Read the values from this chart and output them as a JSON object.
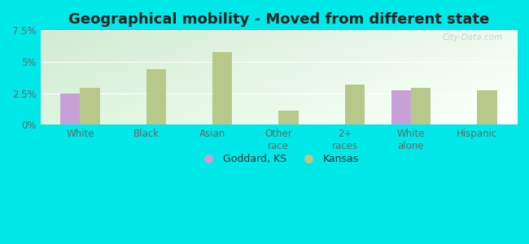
{
  "title": "Geographical mobility - Moved from different state",
  "categories": [
    "White",
    "Black",
    "Asian",
    "Other\nrace",
    "2+\nraces",
    "White\nalone",
    "Hispanic"
  ],
  "goddard_values": [
    2.5,
    0.0,
    0.0,
    0.0,
    0.0,
    2.7,
    0.0
  ],
  "kansas_values": [
    2.9,
    4.4,
    5.8,
    1.1,
    3.2,
    2.9,
    2.7
  ],
  "goddard_color": "#c8a0d8",
  "kansas_color": "#b8c88a",
  "bg_top_color": "#d8edd8",
  "bg_bottom_color": "#f0f8f0",
  "bg_right_color": "#e8e8f0",
  "outer_background": "#00e8e8",
  "ylim": [
    0,
    7.5
  ],
  "yticks": [
    0,
    2.5,
    5.0,
    7.5
  ],
  "ytick_labels": [
    "0%",
    "2.5%",
    "5%",
    "7.5%"
  ],
  "bar_width": 0.3,
  "title_fontsize": 13,
  "tick_fontsize": 8.5,
  "legend_labels": [
    "Goddard, KS",
    "Kansas"
  ],
  "watermark": "City-Data.com"
}
